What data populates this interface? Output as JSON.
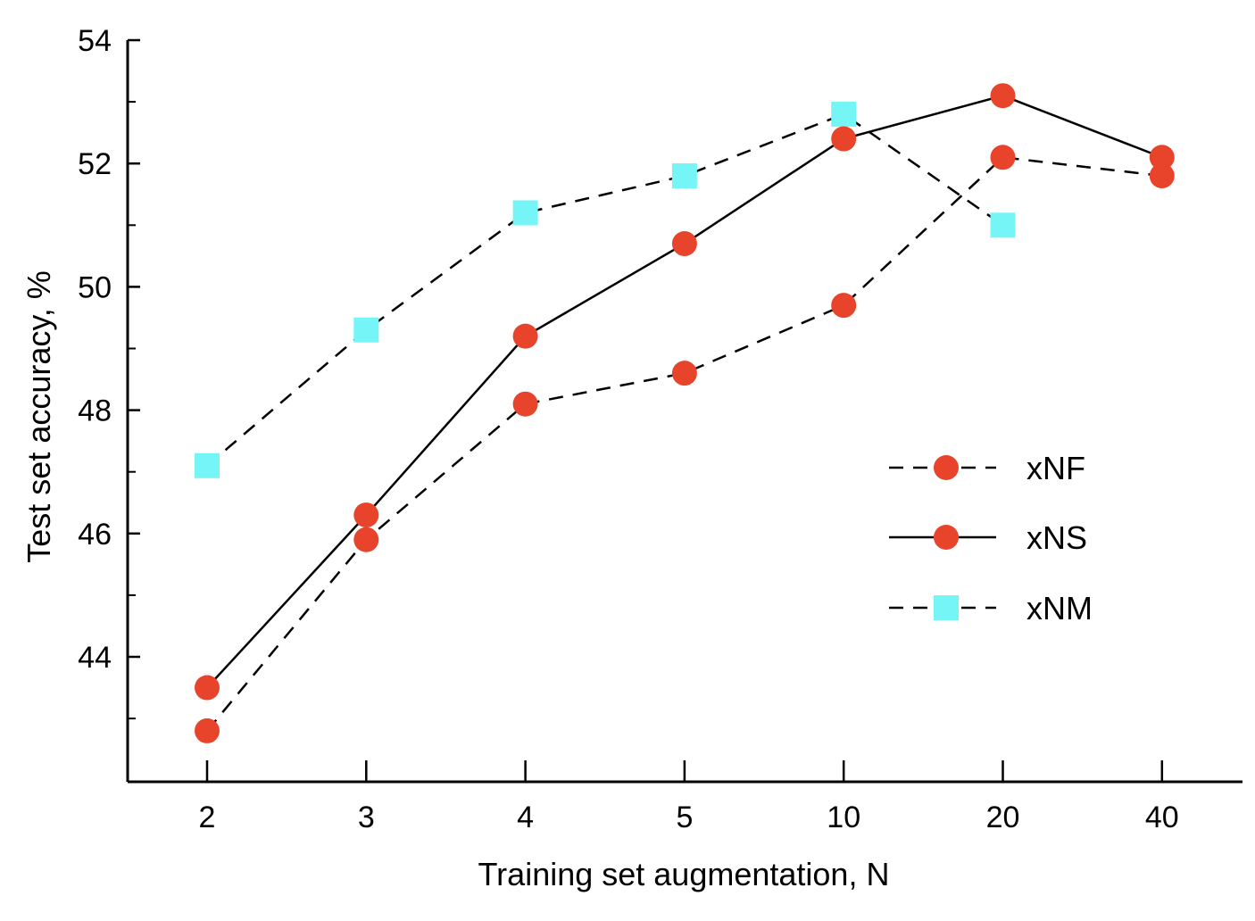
{
  "chart_data": {
    "type": "line",
    "title": "",
    "xlabel": "Training set augmentation, N",
    "ylabel": "Test set accuracy, %",
    "categories": [
      "2",
      "3",
      "4",
      "5",
      "10",
      "20",
      "40"
    ],
    "ylim": [
      42.5,
      54
    ],
    "yticks": [
      44,
      46,
      48,
      50,
      52,
      54
    ],
    "yticks_minor": [
      43,
      45,
      47,
      49,
      51,
      53
    ],
    "grid": false,
    "legend_position": "center-right",
    "series": [
      {
        "name": "xNF",
        "line": "dashed",
        "marker": "circle",
        "color": "#e8432b",
        "values": [
          42.8,
          45.9,
          48.1,
          48.6,
          49.7,
          52.1,
          51.8
        ]
      },
      {
        "name": "xNS",
        "line": "solid",
        "marker": "circle",
        "color": "#e8432b",
        "values": [
          43.5,
          46.3,
          49.2,
          50.7,
          52.4,
          53.1,
          52.1
        ]
      },
      {
        "name": "xNM",
        "line": "dashed",
        "marker": "square",
        "color": "#76f5f7",
        "values": [
          47.1,
          49.3,
          51.2,
          51.8,
          52.8,
          51.0,
          null
        ]
      }
    ]
  }
}
